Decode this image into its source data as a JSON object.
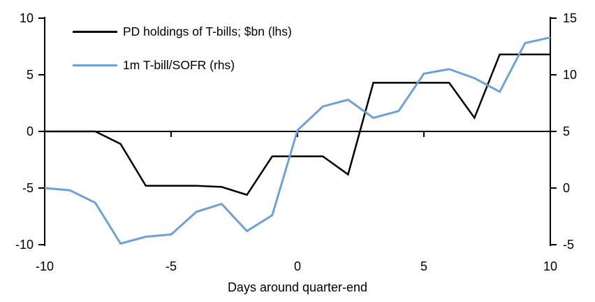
{
  "figure": {
    "xlabel": "Days around quarter-end"
  },
  "chart_data": {
    "type": "line",
    "title": "",
    "xlabel": "Days around quarter-end",
    "x": [
      -10,
      -9,
      -8,
      -7,
      -6,
      -5,
      -4,
      -3,
      -2,
      -1,
      0,
      1,
      2,
      3,
      4,
      5,
      6,
      7,
      8,
      9,
      10
    ],
    "x_ticks": [
      -10,
      -5,
      0,
      5,
      10
    ],
    "axes": {
      "left": {
        "ylim": [
          -10,
          10
        ],
        "ticks": [
          10,
          5,
          0,
          -5,
          -10
        ]
      },
      "right": {
        "ylim": [
          -5,
          15
        ],
        "ticks": [
          15,
          10,
          5,
          0,
          -5
        ]
      }
    },
    "grid": false,
    "legend_position": "top-left",
    "series": [
      {
        "name": "PD holdings of T-bills; $bn (lhs)",
        "axis": "left",
        "color": "#000000",
        "values": [
          0,
          0,
          0,
          -1.1,
          -4.8,
          -4.8,
          -4.8,
          -4.9,
          -5.6,
          -2.2,
          -2.2,
          -2.2,
          -3.8,
          4.3,
          4.3,
          4.3,
          4.3,
          1.2,
          6.8,
          6.8,
          6.8
        ]
      },
      {
        "name": "1m T-bill/SOFR (rhs)",
        "axis": "right",
        "color": "#6CA2D8",
        "values": [
          0.0,
          -0.2,
          -1.3,
          -4.9,
          -4.3,
          -4.1,
          -2.1,
          -1.4,
          -3.8,
          -2.4,
          5.1,
          7.2,
          7.8,
          6.2,
          6.8,
          10.1,
          10.5,
          9.7,
          8.5,
          12.8,
          13.3
        ]
      }
    ]
  },
  "colors": {
    "background": "#FFFFFF",
    "axis": "#000000",
    "accent_blue": "#6CA2D8"
  }
}
